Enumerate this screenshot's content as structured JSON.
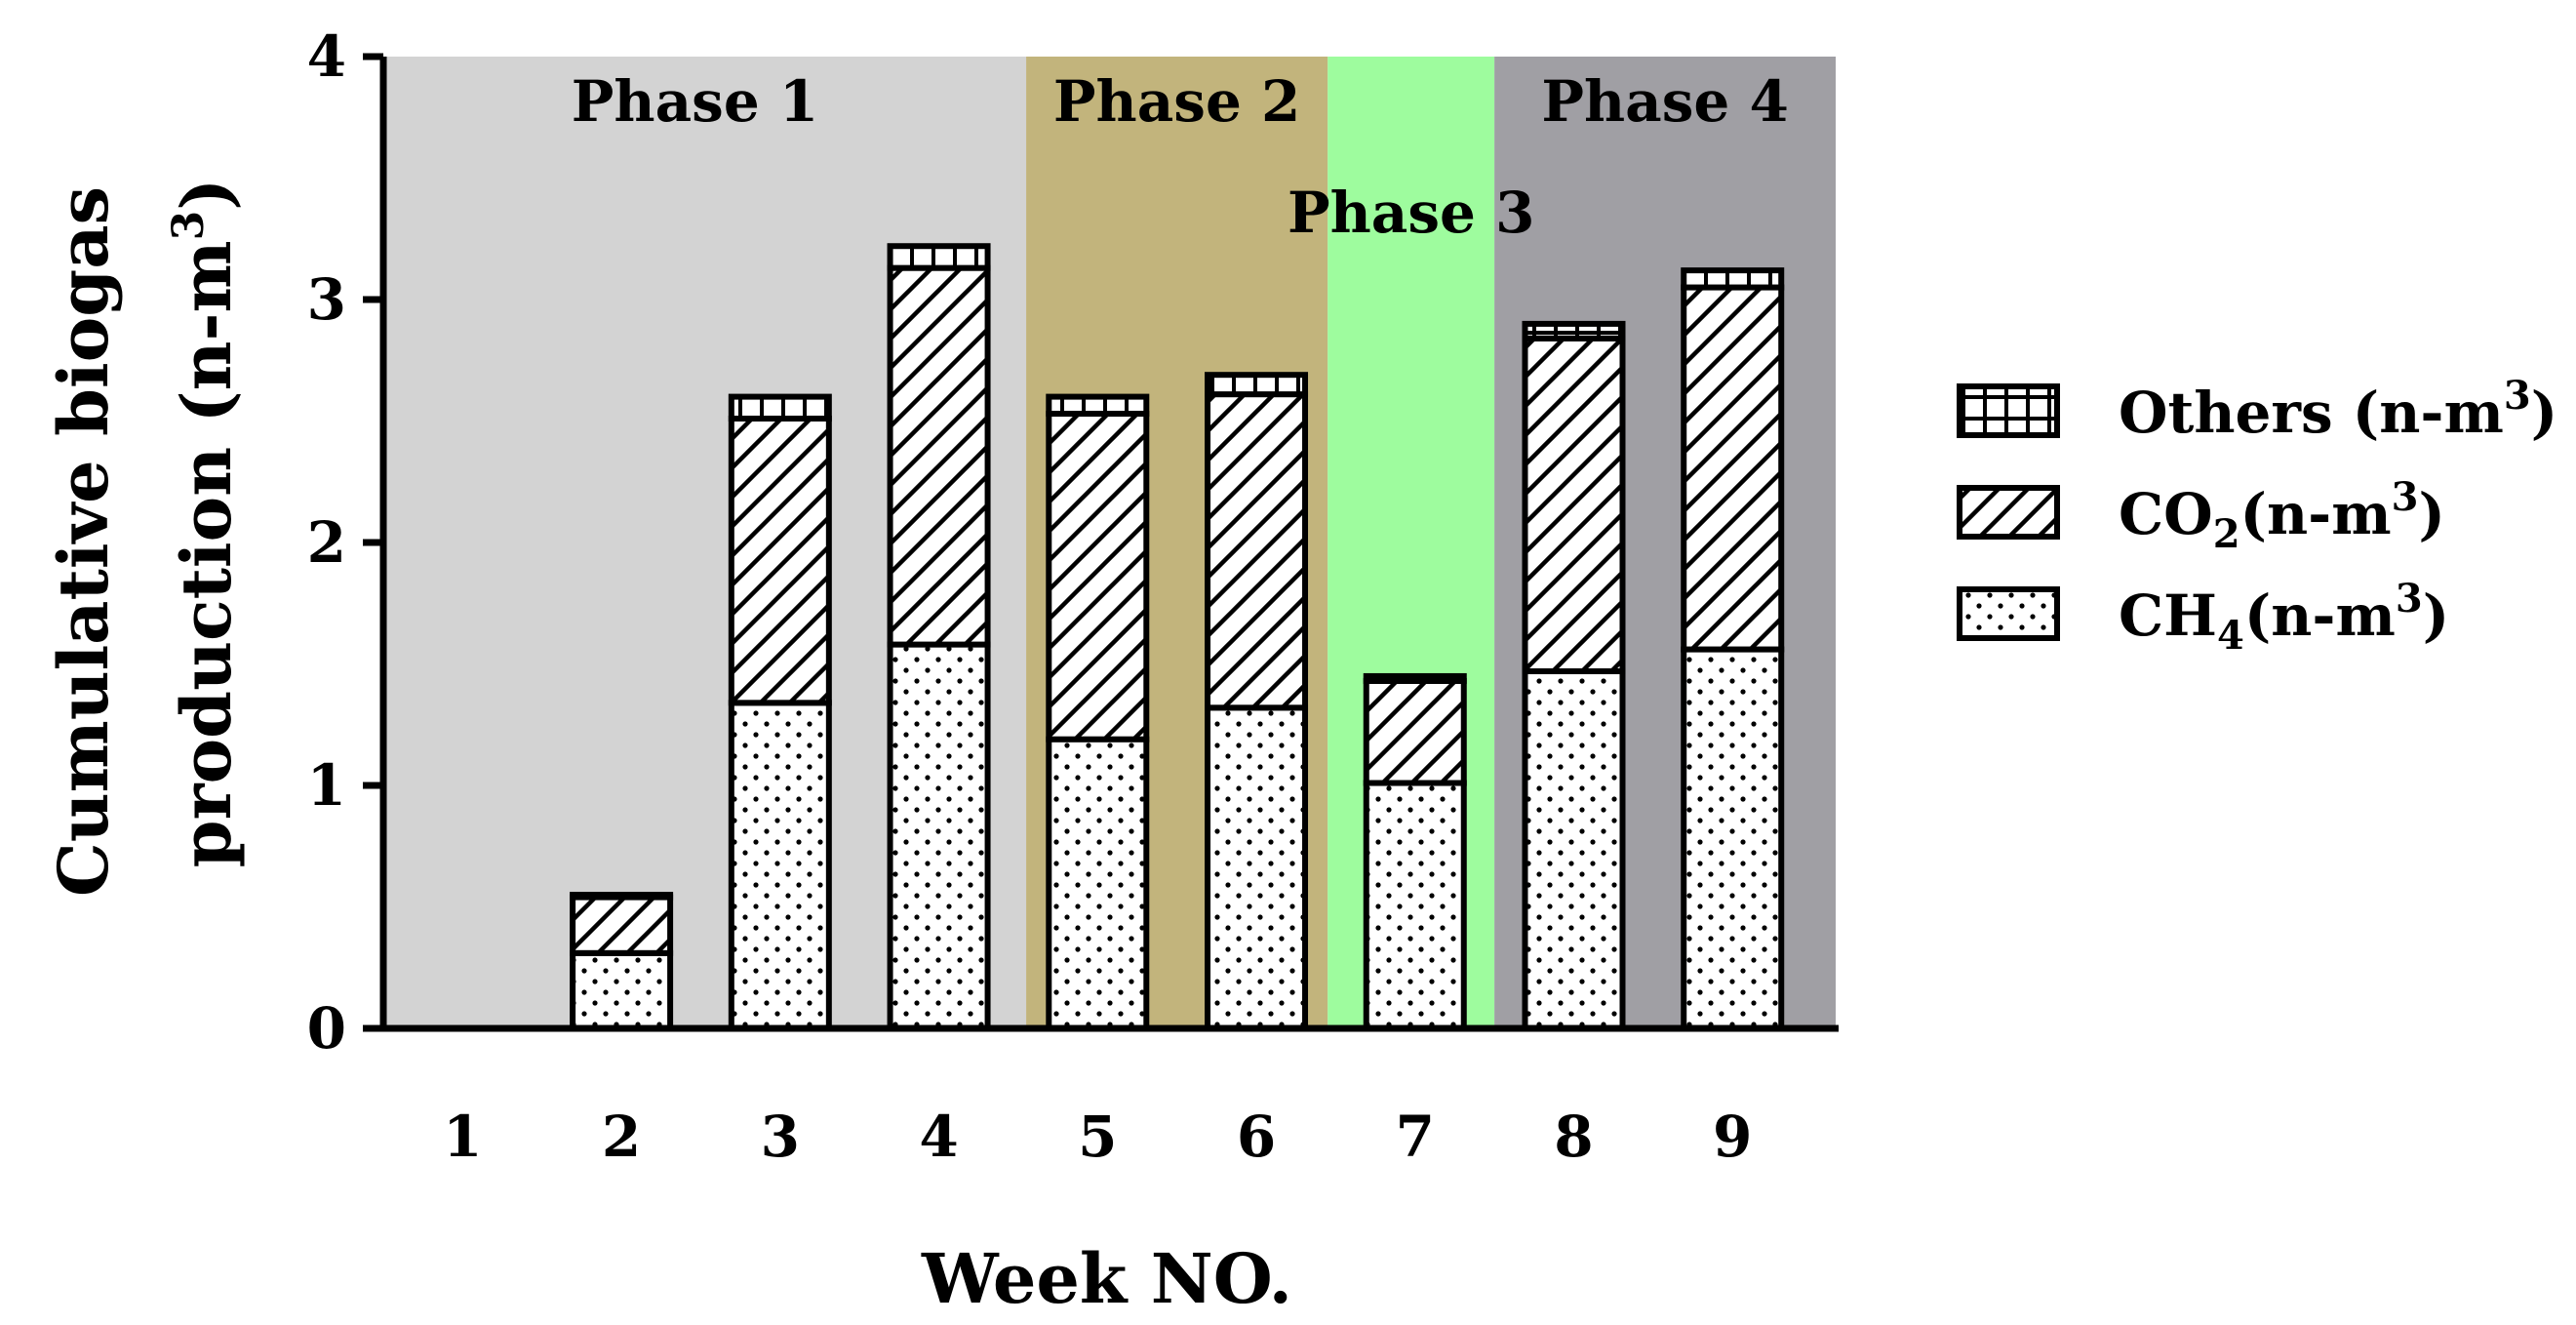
{
  "chart_data": {
    "type": "bar",
    "stacked": true,
    "xlabel": "Week NO.",
    "ylabel_line1": "Cumulative biogas",
    "ylabel_line2": "production (n-m",
    "ylabel_sup": "3",
    "ylabel_close": ")",
    "ylim": [
      0,
      4
    ],
    "yticks": [
      "0",
      "1",
      "2",
      "3",
      "4"
    ],
    "categories": [
      "1",
      "2",
      "3",
      "4",
      "5",
      "6",
      "7",
      "8",
      "9"
    ],
    "series": [
      {
        "name": "CH4",
        "pattern": "dots",
        "values": [
          0,
          0.31,
          1.34,
          1.58,
          1.19,
          1.32,
          1.01,
          1.47,
          1.56
        ]
      },
      {
        "name": "CO2",
        "pattern": "hatch",
        "values": [
          0,
          0.23,
          1.17,
          1.55,
          1.34,
          1.29,
          0.42,
          1.37,
          1.49
        ]
      },
      {
        "name": "Others",
        "pattern": "grid",
        "values": [
          0,
          0.01,
          0.09,
          0.09,
          0.07,
          0.08,
          0.02,
          0.06,
          0.07
        ]
      }
    ],
    "legend": [
      {
        "key": "Others",
        "text": "Others (n-m",
        "sub": "",
        "sup": "3",
        "close": ")"
      },
      {
        "key": "CO2",
        "text": "CO",
        "sub": "2",
        "after": "(n-m",
        "sup": "3",
        "close": ")"
      },
      {
        "key": "CH4",
        "text": "CH",
        "sub": "4",
        "after": "(n-m",
        "sup": "3",
        "close": ")"
      }
    ],
    "phases": [
      {
        "label": "Phase 1",
        "from": 0.5,
        "to": 4.55,
        "color": "#d3d3d3",
        "label_pos": "top"
      },
      {
        "label": "Phase 2",
        "from": 4.55,
        "to": 6.45,
        "color": "#c2b47c",
        "label_pos": "top"
      },
      {
        "label": "Phase 3",
        "from": 6.45,
        "to": 7.5,
        "color": "#9efc9e",
        "label_pos": "middle"
      },
      {
        "label": "Phase 4",
        "from": 7.5,
        "to": 9.65,
        "color": "#a09fa4",
        "label_pos": "top"
      }
    ]
  }
}
